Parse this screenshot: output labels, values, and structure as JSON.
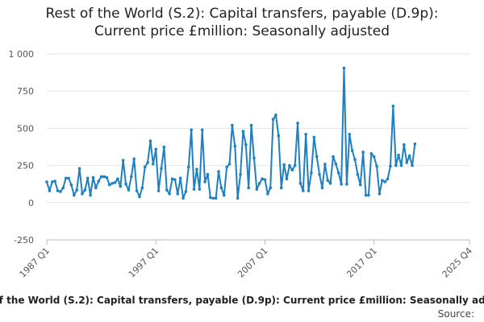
{
  "chart_data": {
    "type": "line",
    "title": "Rest of the World (S.2): Capital transfers, payable (D.9p): Current price £million: Seasonally adjusted",
    "source": "Source:",
    "color": "#1f7fc0",
    "grid": true,
    "xlim": [
      "1987 Q1",
      "2025 Q4"
    ],
    "xticks": [
      "1987 Q1",
      "1997 Q1",
      "2007 Q1",
      "2017 Q1",
      "2025 Q4"
    ],
    "ylim": [
      -250,
      1000
    ],
    "yticks": [
      -250,
      0,
      250,
      500,
      750,
      {
        "value": 1000,
        "label": "1 000"
      }
    ],
    "x": [
      "1987 Q1",
      "1987 Q2",
      "1987 Q3",
      "1987 Q4",
      "1988 Q1",
      "1988 Q2",
      "1988 Q3",
      "1988 Q4",
      "1989 Q1",
      "1989 Q2",
      "1989 Q3",
      "1989 Q4",
      "1990 Q1",
      "1990 Q2",
      "1990 Q3",
      "1990 Q4",
      "1991 Q1",
      "1991 Q2",
      "1991 Q3",
      "1991 Q4",
      "1992 Q1",
      "1992 Q2",
      "1992 Q3",
      "1992 Q4",
      "1993 Q1",
      "1993 Q2",
      "1993 Q3",
      "1993 Q4",
      "1994 Q1",
      "1994 Q2",
      "1994 Q3",
      "1994 Q4",
      "1995 Q1",
      "1995 Q2",
      "1995 Q3",
      "1995 Q4",
      "1996 Q1",
      "1996 Q2",
      "1996 Q3",
      "1996 Q4",
      "1997 Q1",
      "1997 Q2",
      "1997 Q3",
      "1997 Q4",
      "1998 Q1",
      "1998 Q2",
      "1998 Q3",
      "1998 Q4",
      "1999 Q1",
      "1999 Q2",
      "1999 Q3",
      "1999 Q4",
      "2000 Q1",
      "2000 Q2",
      "2000 Q3",
      "2000 Q4",
      "2001 Q1",
      "2001 Q2",
      "2001 Q3",
      "2001 Q4",
      "2002 Q1",
      "2002 Q2",
      "2002 Q3",
      "2002 Q4",
      "2003 Q1",
      "2003 Q2",
      "2003 Q3",
      "2003 Q4",
      "2004 Q1",
      "2004 Q2",
      "2004 Q3",
      "2004 Q4",
      "2005 Q1",
      "2005 Q2",
      "2005 Q3",
      "2005 Q4",
      "2006 Q1",
      "2006 Q2",
      "2006 Q3",
      "2006 Q4",
      "2007 Q1",
      "2007 Q2",
      "2007 Q3",
      "2007 Q4",
      "2008 Q1",
      "2008 Q2",
      "2008 Q3",
      "2008 Q4",
      "2009 Q1",
      "2009 Q2",
      "2009 Q3",
      "2009 Q4",
      "2010 Q1",
      "2010 Q2",
      "2010 Q3",
      "2010 Q4",
      "2011 Q1",
      "2011 Q2",
      "2011 Q3",
      "2011 Q4",
      "2012 Q1",
      "2012 Q2",
      "2012 Q3",
      "2012 Q4",
      "2013 Q1",
      "2013 Q2",
      "2013 Q3",
      "2013 Q4",
      "2014 Q1",
      "2014 Q2",
      "2014 Q3",
      "2014 Q4",
      "2015 Q1",
      "2015 Q2",
      "2015 Q3",
      "2015 Q4",
      "2016 Q1",
      "2016 Q2",
      "2016 Q3",
      "2016 Q4",
      "2017 Q1",
      "2017 Q2",
      "2017 Q3",
      "2017 Q4",
      "2018 Q1",
      "2018 Q2",
      "2018 Q3",
      "2018 Q4",
      "2019 Q1",
      "2019 Q2",
      "2019 Q3",
      "2019 Q4",
      "2020 Q1",
      "2020 Q2",
      "2020 Q3",
      "2020 Q4"
    ],
    "values": [
      140,
      80,
      140,
      145,
      80,
      75,
      100,
      165,
      165,
      120,
      50,
      85,
      230,
      60,
      85,
      165,
      50,
      170,
      100,
      145,
      175,
      175,
      170,
      120,
      130,
      135,
      160,
      110,
      285,
      125,
      85,
      175,
      295,
      80,
      40,
      100,
      240,
      270,
      415,
      260,
      360,
      80,
      230,
      375,
      85,
      60,
      160,
      155,
      60,
      165,
      30,
      75,
      240,
      490,
      90,
      225,
      90,
      490,
      140,
      190,
      35,
      30,
      30,
      210,
      100,
      50,
      240,
      260,
      520,
      380,
      30,
      190,
      480,
      390,
      100,
      520,
      300,
      90,
      130,
      160,
      155,
      60,
      100,
      560,
      590,
      450,
      100,
      255,
      160,
      250,
      220,
      250,
      535,
      130,
      80,
      460,
      80,
      200,
      440,
      310,
      190,
      100,
      260,
      150,
      130,
      310,
      260,
      200,
      125,
      905,
      125,
      460,
      350,
      290,
      190,
      120,
      340,
      50,
      50,
      330,
      310,
      245,
      60,
      150,
      140,
      160,
      245,
      650,
      250,
      320,
      250,
      390,
      270,
      315,
      250,
      395
    ]
  }
}
